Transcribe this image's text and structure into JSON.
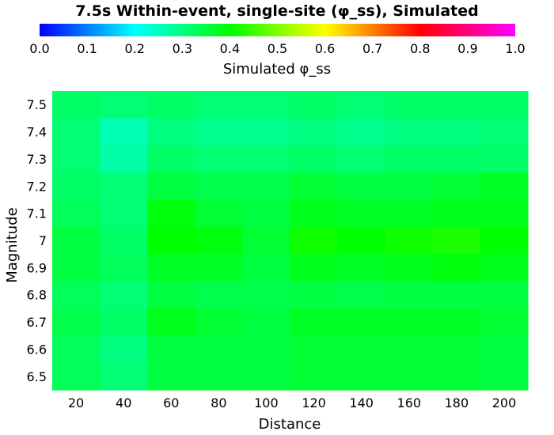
{
  "chart_data": {
    "type": "heatmap",
    "title": "7.5s Within-event, single-site (φ_ss), Simulated",
    "xlabel": "Distance",
    "ylabel": "Magnitude",
    "x": [
      20,
      40,
      60,
      80,
      100,
      120,
      140,
      160,
      180,
      200
    ],
    "y": [
      7.5,
      7.4,
      7.3,
      7.2,
      7.1,
      7.0,
      6.9,
      6.8,
      6.7,
      6.6,
      6.5
    ],
    "x_tick_labels": [
      "20",
      "40",
      "60",
      "80",
      "100",
      "120",
      "140",
      "160",
      "180",
      "200"
    ],
    "y_tick_labels": [
      "7.5",
      "7.4",
      "7.3",
      "7.2",
      "7.1",
      "7",
      "6.9",
      "6.8",
      "6.7",
      "6.6",
      "6.5"
    ],
    "values": [
      [
        0.32,
        0.31,
        0.32,
        0.31,
        0.31,
        0.32,
        0.31,
        0.32,
        0.32,
        0.32
      ],
      [
        0.31,
        0.26,
        0.3,
        0.29,
        0.29,
        0.3,
        0.29,
        0.3,
        0.3,
        0.31
      ],
      [
        0.31,
        0.27,
        0.32,
        0.31,
        0.31,
        0.32,
        0.31,
        0.32,
        0.32,
        0.32
      ],
      [
        0.32,
        0.31,
        0.35,
        0.34,
        0.34,
        0.36,
        0.35,
        0.35,
        0.36,
        0.37
      ],
      [
        0.33,
        0.31,
        0.39,
        0.36,
        0.35,
        0.38,
        0.37,
        0.37,
        0.38,
        0.38
      ],
      [
        0.35,
        0.32,
        0.4,
        0.39,
        0.36,
        0.41,
        0.4,
        0.41,
        0.42,
        0.4
      ],
      [
        0.35,
        0.33,
        0.37,
        0.37,
        0.35,
        0.38,
        0.37,
        0.38,
        0.39,
        0.38
      ],
      [
        0.33,
        0.31,
        0.35,
        0.34,
        0.34,
        0.35,
        0.34,
        0.35,
        0.35,
        0.35
      ],
      [
        0.34,
        0.32,
        0.38,
        0.36,
        0.35,
        0.37,
        0.37,
        0.37,
        0.37,
        0.36
      ],
      [
        0.33,
        0.3,
        0.35,
        0.35,
        0.35,
        0.36,
        0.36,
        0.36,
        0.36,
        0.35
      ],
      [
        0.33,
        0.31,
        0.35,
        0.35,
        0.35,
        0.36,
        0.36,
        0.36,
        0.36,
        0.35
      ]
    ],
    "colorbar": {
      "label": "Simulated φ_ss",
      "range": [
        0.0,
        1.0
      ],
      "ticks": [
        "0.0",
        "0.1",
        "0.2",
        "0.3",
        "0.4",
        "0.5",
        "0.6",
        "0.7",
        "0.8",
        "0.9",
        "1.0"
      ],
      "stops": [
        "#0000ff",
        "#00ffff",
        "#00ff00",
        "#ffff00",
        "#ff0000",
        "#ff00ff"
      ]
    }
  }
}
